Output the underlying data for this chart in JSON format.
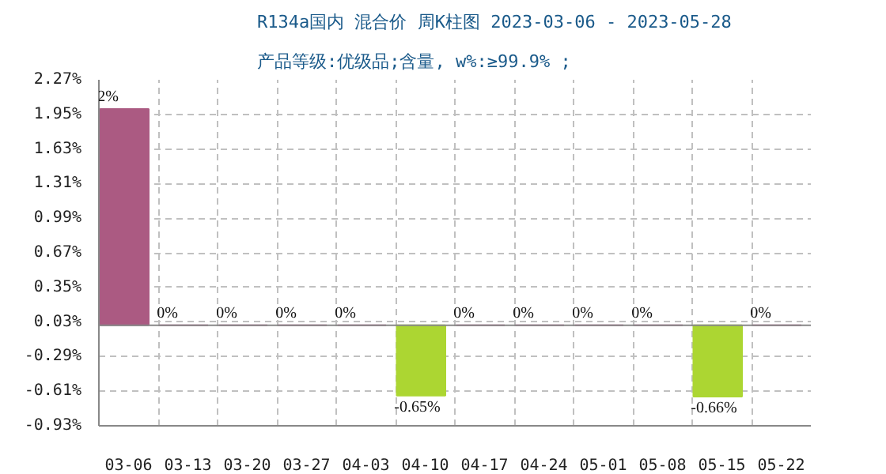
{
  "chart_data": {
    "type": "bar",
    "title": "R134a国内 混合价 周K柱图 2023-03-06 - 2023-05-28",
    "subtitle": "产品等级:优级品;含量, w%:≥99.9% ;",
    "categories": [
      "03-06",
      "03-13",
      "03-20",
      "03-27",
      "04-03",
      "04-10",
      "04-17",
      "04-24",
      "05-01",
      "05-08",
      "05-15",
      "05-22"
    ],
    "values": [
      2,
      0,
      0,
      0,
      0,
      -0.65,
      0,
      0,
      0,
      0,
      -0.66,
      0
    ],
    "colors": [
      "#ab5a82",
      "#ab5a82",
      "#ab5a82",
      "#ab5a82",
      "#ab5a82",
      "#acd632",
      "#ab5a82",
      "#ab5a82",
      "#ab5a82",
      "#ab5a82",
      "#acd632",
      "#ab5a82"
    ],
    "value_labels": [
      "2%",
      "0%",
      "0%",
      "0%",
      "0%",
      "-0.65%",
      "0%",
      "0%",
      "0%",
      "0%",
      "-0.66%",
      "0%"
    ],
    "ylim": [
      -0.93,
      2.27
    ],
    "yticks": [
      {
        "value": 2.27,
        "label": "2.27%"
      },
      {
        "value": 1.95,
        "label": "1.95%"
      },
      {
        "value": 1.63,
        "label": "1.63%"
      },
      {
        "value": 1.31,
        "label": "1.31%"
      },
      {
        "value": 0.99,
        "label": "0.99%"
      },
      {
        "value": 0.67,
        "label": "0.67%"
      },
      {
        "value": 0.35,
        "label": "0.35%"
      },
      {
        "value": 0.03,
        "label": "0.03%"
      },
      {
        "value": -0.29,
        "label": "-0.29%"
      },
      {
        "value": -0.61,
        "label": "-0.61%"
      },
      {
        "value": -0.93,
        "label": "-0.93%"
      }
    ],
    "grid": true
  }
}
